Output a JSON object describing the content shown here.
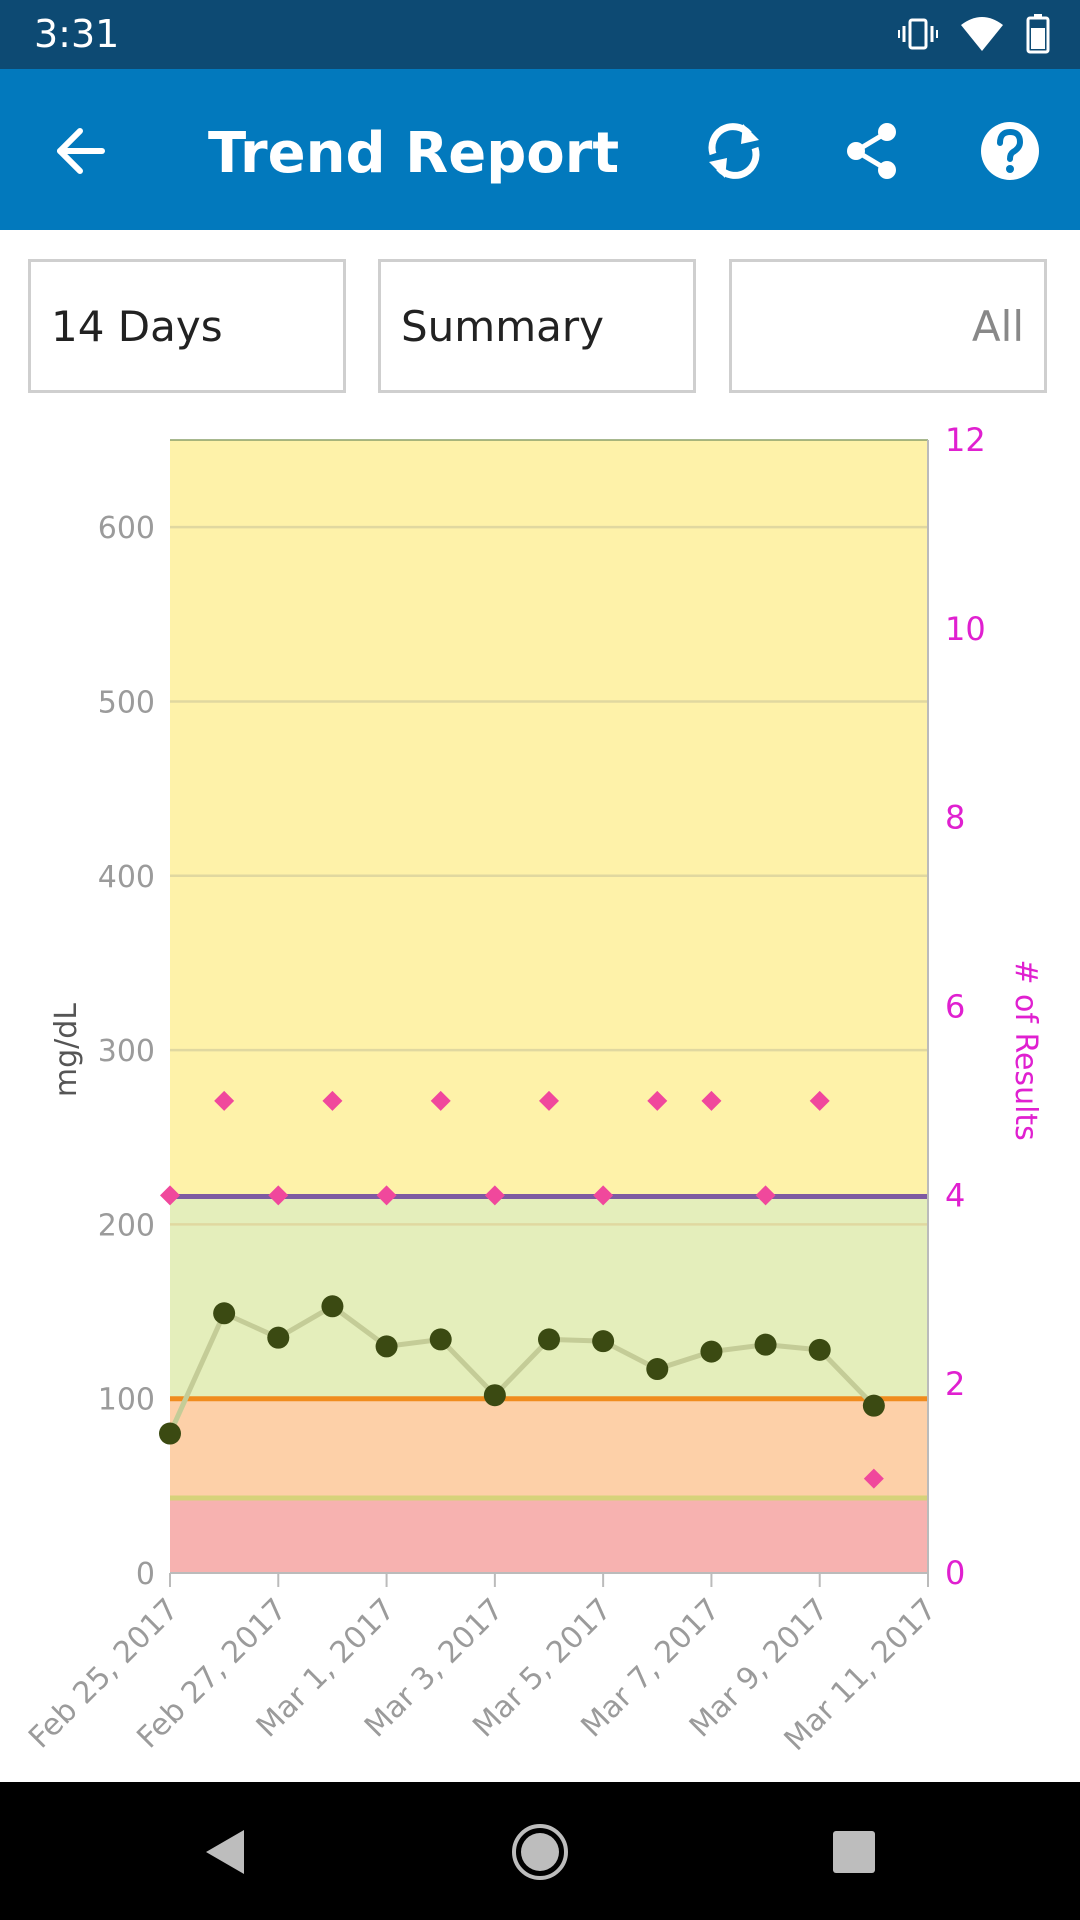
{
  "status_bar": {
    "time": "3:31",
    "icons": [
      "vibrate-icon",
      "wifi-icon",
      "battery-icon"
    ]
  },
  "app_bar": {
    "title": "Trend Report",
    "back_icon": "back-arrow-icon",
    "actions": [
      "sync-icon",
      "share-icon",
      "help-icon"
    ],
    "background": "#0279bd"
  },
  "filters": {
    "period": "14 Days",
    "view": "Summary",
    "meal": "All"
  },
  "chart_data": {
    "type": "line",
    "ylabel": "mg/dL",
    "y2label": "# of Results",
    "ylim": [
      0,
      650
    ],
    "y2lim": [
      0,
      12
    ],
    "y_ticks": [
      "0",
      "100",
      "200",
      "300",
      "400",
      "500",
      "600"
    ],
    "y_tick_values": [
      0,
      100,
      200,
      300,
      400,
      500,
      600
    ],
    "y2_ticks": [
      "0",
      "2",
      "4",
      "6",
      "8",
      "10",
      "12"
    ],
    "y2_tick_values": [
      0,
      2,
      4,
      6,
      8,
      10,
      12
    ],
    "x_tick_labels": [
      "Feb 25, 2017",
      "Feb 27, 2017",
      "Mar 1, 2017",
      "Mar 3, 2017",
      "Mar 5, 2017",
      "Mar 7, 2017",
      "Mar 9, 2017",
      "Mar 11, 2017"
    ],
    "x_tick_days": [
      0,
      2,
      4,
      6,
      8,
      10,
      12,
      14
    ],
    "bands": [
      {
        "from": 0,
        "to": 42,
        "color": "#f7b2b0"
      },
      {
        "from": 42,
        "to": 100,
        "color": "#fdd0a8"
      },
      {
        "from": 100,
        "to": 216,
        "color": "#e4eebb"
      },
      {
        "from": 216,
        "to": 650,
        "color": "#fef2a9"
      }
    ],
    "reference_lines": [
      {
        "value": 43,
        "color": "#d6d27a"
      },
      {
        "value": 100,
        "color": "#f08c1e"
      },
      {
        "value": 216,
        "color": "#7e5aa2"
      }
    ],
    "series": [
      {
        "kind": "average",
        "color": "#3b4a12",
        "line_color": "#c4cc97",
        "points": [
          {
            "day": 0,
            "value": 80
          },
          {
            "day": 1,
            "value": 149
          },
          {
            "day": 2,
            "value": 135
          },
          {
            "day": 3,
            "value": 153
          },
          {
            "day": 4,
            "value": 130
          },
          {
            "day": 5,
            "value": 134
          },
          {
            "day": 6,
            "value": 102
          },
          {
            "day": 7,
            "value": 134
          },
          {
            "day": 8,
            "value": 133
          },
          {
            "day": 9,
            "value": 117
          },
          {
            "day": 10,
            "value": 127
          },
          {
            "day": 11,
            "value": 131
          },
          {
            "day": 12,
            "value": 128
          },
          {
            "day": 13,
            "value": 96
          }
        ]
      },
      {
        "kind": "count",
        "color": "#f0489c",
        "points": [
          {
            "day": 0,
            "value": 4
          },
          {
            "day": 1,
            "value": 5
          },
          {
            "day": 2,
            "value": 4
          },
          {
            "day": 3,
            "value": 5
          },
          {
            "day": 4,
            "value": 4
          },
          {
            "day": 5,
            "value": 5
          },
          {
            "day": 6,
            "value": 4
          },
          {
            "day": 7,
            "value": 5
          },
          {
            "day": 8,
            "value": 4
          },
          {
            "day": 9,
            "value": 5
          },
          {
            "day": 10,
            "value": 5
          },
          {
            "day": 11,
            "value": 4
          },
          {
            "day": 12,
            "value": 5
          },
          {
            "day": 13,
            "value": 1
          }
        ]
      }
    ]
  }
}
